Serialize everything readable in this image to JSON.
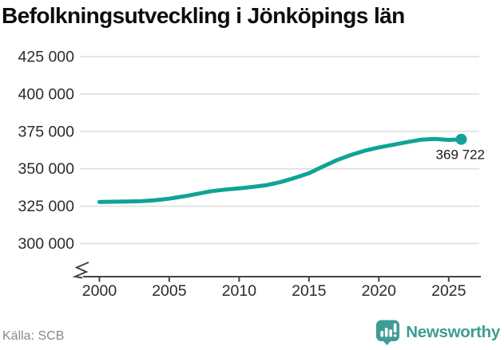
{
  "title": "Befolkningsutveckling i Jönköpings län",
  "footer": {
    "source": "Källa: SCB",
    "brand": "Newsworthy"
  },
  "colors": {
    "line": "#0FA396",
    "grid": "#E1E1E1",
    "axis": "#444444",
    "tick_text": "#2B2B2B",
    "end_label_text": "#1A1A1A",
    "muted_text": "#8A8A8A",
    "brand": "#3F9C94"
  },
  "chart_data": {
    "type": "line",
    "title": "Befolkningsutveckling i Jönköpings län",
    "x": [
      2000,
      2001,
      2002,
      2003,
      2004,
      2005,
      2006,
      2007,
      2008,
      2009,
      2010,
      2011,
      2012,
      2013,
      2014,
      2015,
      2016,
      2017,
      2018,
      2019,
      2020,
      2021,
      2022,
      2023,
      2024,
      2025,
      2025.9
    ],
    "values": [
      327829,
      327971,
      328100,
      328300,
      329000,
      330000,
      331500,
      333200,
      335000,
      336100,
      336866,
      337900,
      339100,
      341200,
      344000,
      347000,
      351500,
      355800,
      359200,
      362100,
      364300,
      366000,
      367800,
      369400,
      370000,
      369300,
      369722
    ],
    "end_value": 369722,
    "end_label": "369 722",
    "yticks": [
      {
        "value": 300000,
        "label": "300 000"
      },
      {
        "value": 325000,
        "label": "325 000"
      },
      {
        "value": 350000,
        "label": "350 000"
      },
      {
        "value": 375000,
        "label": "375 000"
      },
      {
        "value": 400000,
        "label": "400 000"
      },
      {
        "value": 425000,
        "label": "425 000"
      }
    ],
    "xticks": [
      2000,
      2005,
      2010,
      2015,
      2020,
      2025
    ],
    "ylim": [
      300000,
      425000
    ],
    "xlim": [
      2000,
      2027
    ],
    "axis_break": true,
    "grid": "horizontal-only",
    "legend": "none",
    "source": "Källa: SCB"
  }
}
